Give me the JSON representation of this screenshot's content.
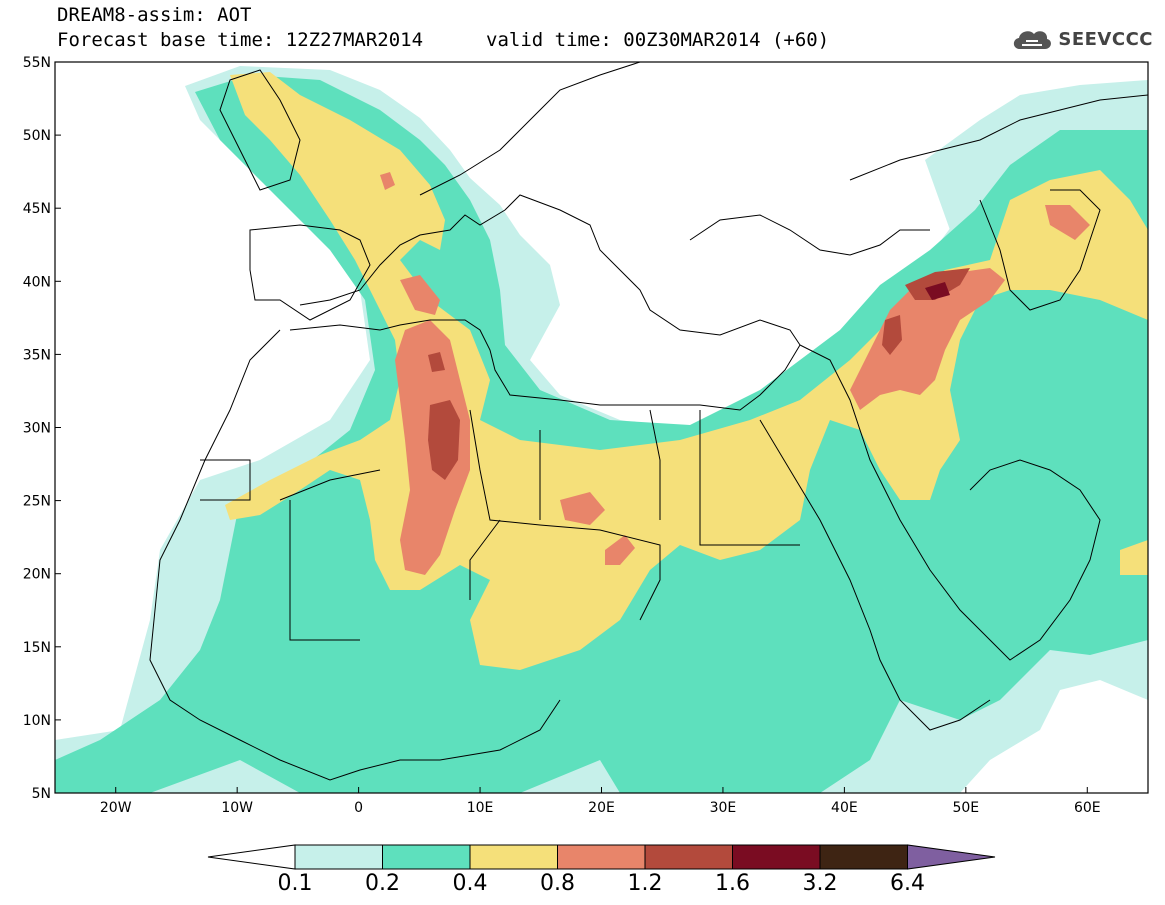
{
  "header": {
    "model_title": "DREAM8-assim: AOT",
    "base_time": "Forecast base time: 12Z27MAR2014",
    "valid_time": "valid time: 00Z30MAR2014 (+60)"
  },
  "logo": {
    "text": "SEEVCCC",
    "icon": "cloud-icon"
  },
  "axes": {
    "lon_labels": [
      "20W",
      "10W",
      "0",
      "10E",
      "20E",
      "30E",
      "40E",
      "50E",
      "60E"
    ],
    "lon_values": [
      -20,
      -10,
      0,
      10,
      20,
      30,
      40,
      50,
      60
    ],
    "lat_labels": [
      "5N",
      "10N",
      "15N",
      "20N",
      "25N",
      "30N",
      "35N",
      "40N",
      "45N",
      "50N",
      "55N"
    ],
    "lat_values": [
      5,
      10,
      15,
      20,
      25,
      30,
      35,
      40,
      45,
      50,
      55
    ],
    "lon_range": [
      -25,
      65
    ],
    "lat_range": [
      5,
      55
    ]
  },
  "colorbar": {
    "labels": [
      "0.1",
      "0.2",
      "0.4",
      "0.8",
      "1.2",
      "1.6",
      "3.2",
      "6.4"
    ],
    "colors": [
      "#c6f0ea",
      "#5ee0bd",
      "#f5e07a",
      "#e8856a",
      "#b34a3c",
      "#7a0c22",
      "#3e2413",
      "#7f5fa0"
    ],
    "under_color": "#ffffff"
  },
  "levels": {
    "c1": "#c6f0ea",
    "c2": "#5ee0bd",
    "c3": "#f5e07a",
    "c4": "#e8856a",
    "c5": "#b34a3c",
    "c6": "#7a0c22"
  }
}
